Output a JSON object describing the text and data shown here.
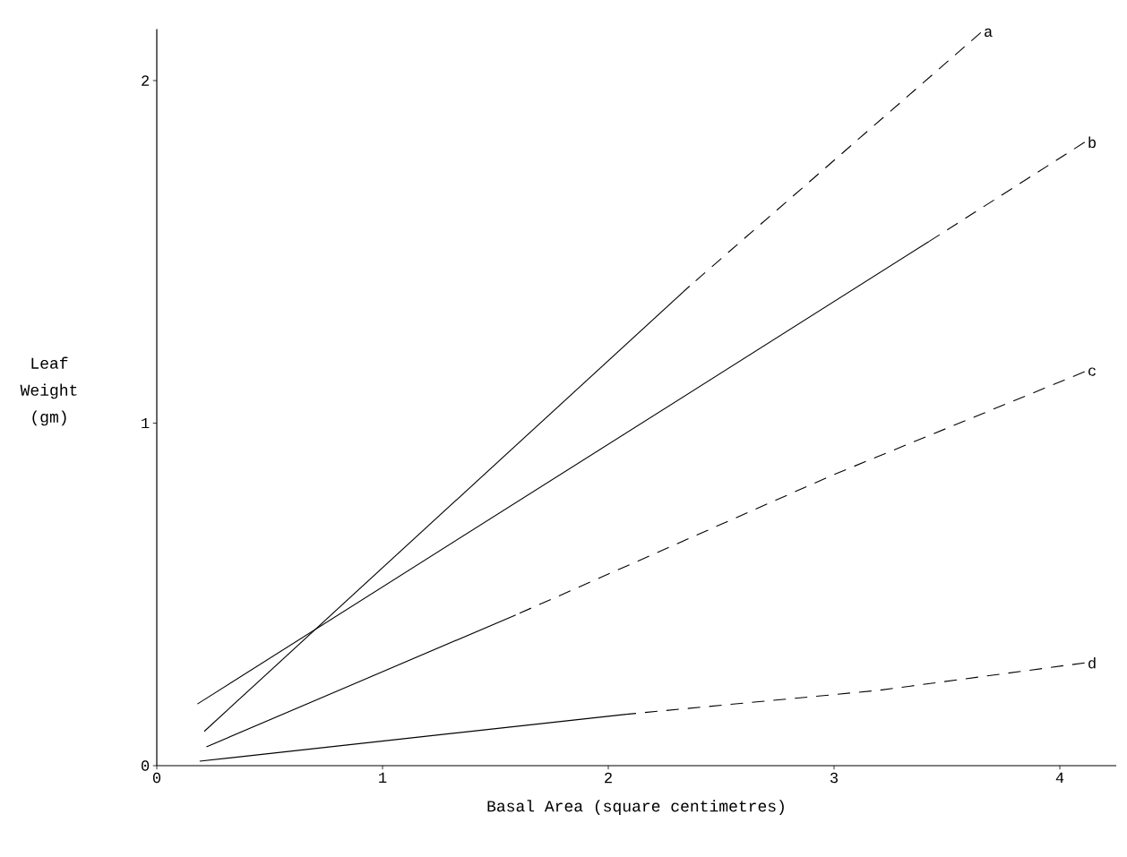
{
  "chart_data": {
    "type": "line",
    "xlabel": "Basal Area (square centimetres)",
    "ylabel": "Leaf Weight (gm)",
    "xlim": [
      0,
      4.25
    ],
    "ylim": [
      0,
      2.15
    ],
    "xticks": [
      0,
      1,
      2,
      3,
      4
    ],
    "yticks": [
      0,
      1,
      2
    ],
    "grid": false,
    "legend": false,
    "marker": "none",
    "series": [
      {
        "color": "#000000",
        "line_style": "solid",
        "x": [
          0.21,
          2.36
        ],
        "values": [
          0.1,
          1.4
        ]
      },
      {
        "name": "a",
        "color": "#000000",
        "line_style": "dashed",
        "x": [
          2.36,
          3.65
        ],
        "values": [
          1.4,
          2.14
        ]
      },
      {
        "color": "#000000",
        "line_style": "solid",
        "x": [
          0.18,
          3.42
        ],
        "values": [
          0.18,
          1.53
        ]
      },
      {
        "name": "b",
        "color": "#000000",
        "line_style": "dashed",
        "x": [
          3.42,
          4.11
        ],
        "values": [
          1.53,
          1.82
        ]
      },
      {
        "color": "#000000",
        "line_style": "solid",
        "x": [
          0.22,
          1.59
        ],
        "values": [
          0.055,
          0.44
        ]
      },
      {
        "name": "c",
        "color": "#000000",
        "line_style": "dashed",
        "x": [
          1.59,
          3.0,
          4.11
        ],
        "values": [
          0.44,
          0.85,
          1.15
        ]
      },
      {
        "color": "#000000",
        "line_style": "solid",
        "x": [
          0.19,
          2.08
        ],
        "values": [
          0.013,
          0.15
        ]
      },
      {
        "name": "d",
        "color": "#000000",
        "line_style": "dashed",
        "x": [
          2.08,
          3.2,
          4.11
        ],
        "values": [
          0.15,
          0.22,
          0.3
        ]
      }
    ]
  }
}
